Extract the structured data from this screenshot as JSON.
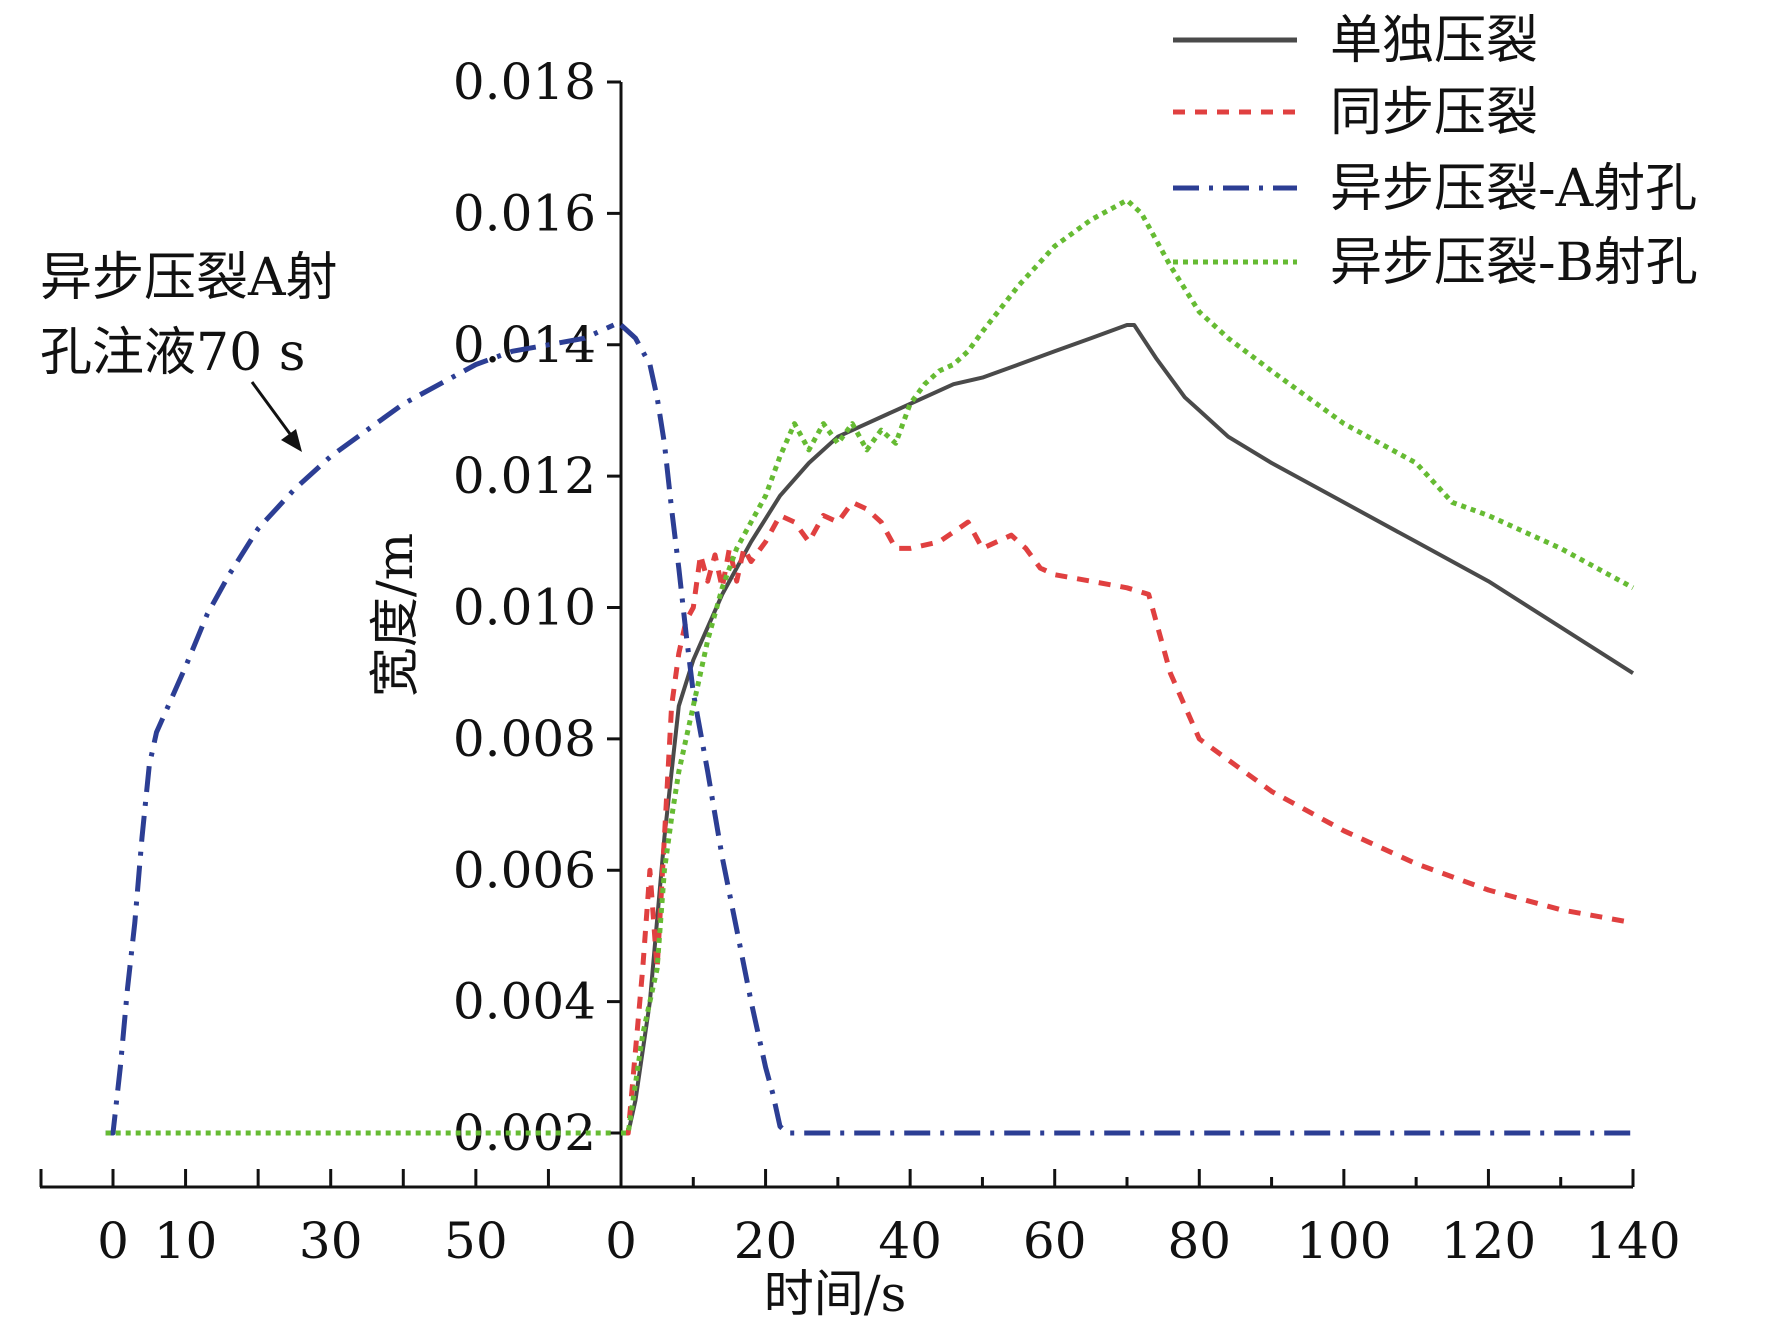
{
  "chart_data": {
    "type": "line",
    "xlabel": "时间/s",
    "ylabel": "宽度/m",
    "ylim": [
      0.0017,
      0.018
    ],
    "y_ticks": [
      "0.002",
      "0.004",
      "0.006",
      "0.008",
      "0.010",
      "0.012",
      "0.014",
      "0.016",
      "0.018"
    ],
    "pre_segment": {
      "description_label": "异步压裂A射孔注液70 s",
      "xlim": [
        -10,
        70
      ],
      "ticks": [
        0,
        10,
        30,
        50
      ],
      "tick_labels": [
        "0",
        "10",
        "30",
        "50"
      ]
    },
    "main_segment": {
      "xlim": [
        0,
        140
      ],
      "ticks": [
        0,
        20,
        40,
        60,
        80,
        100,
        120,
        140
      ],
      "tick_labels": [
        "0",
        "20",
        "40",
        "60",
        "80",
        "100",
        "120",
        "140"
      ]
    },
    "annotation": {
      "line1": "异步压裂A射",
      "line2": "孔注液70 s",
      "points_to_x": 26,
      "points_to_y": 0.0122
    },
    "legend_position": "top-right",
    "series": [
      {
        "name": "单独压裂",
        "color": "#4a4a4a",
        "style": "solid",
        "segment": "main",
        "points": [
          [
            0,
            0.002
          ],
          [
            1,
            0.002
          ],
          [
            2,
            0.0025
          ],
          [
            4,
            0.004
          ],
          [
            6,
            0.0065
          ],
          [
            8,
            0.0085
          ],
          [
            10,
            0.0092
          ],
          [
            14,
            0.0102
          ],
          [
            18,
            0.011
          ],
          [
            22,
            0.0117
          ],
          [
            26,
            0.0122
          ],
          [
            30,
            0.0126
          ],
          [
            34,
            0.0128
          ],
          [
            38,
            0.013
          ],
          [
            42,
            0.0132
          ],
          [
            46,
            0.0134
          ],
          [
            50,
            0.0135
          ],
          [
            55,
            0.0137
          ],
          [
            60,
            0.0139
          ],
          [
            65,
            0.0141
          ],
          [
            70,
            0.0143
          ],
          [
            71,
            0.0143
          ],
          [
            74,
            0.0138
          ],
          [
            78,
            0.0132
          ],
          [
            80,
            0.013
          ],
          [
            84,
            0.0126
          ],
          [
            90,
            0.0122
          ],
          [
            100,
            0.0116
          ],
          [
            110,
            0.011
          ],
          [
            120,
            0.0104
          ],
          [
            130,
            0.0097
          ],
          [
            140,
            0.009
          ]
        ]
      },
      {
        "name": "同步压裂",
        "color": "#e04040",
        "style": "dotted",
        "segment": "main",
        "points": [
          [
            0,
            0.002
          ],
          [
            1,
            0.002
          ],
          [
            3,
            0.0045
          ],
          [
            4,
            0.006
          ],
          [
            5,
            0.0045
          ],
          [
            6,
            0.0065
          ],
          [
            7,
            0.0085
          ],
          [
            8,
            0.0093
          ],
          [
            9,
            0.0098
          ],
          [
            10,
            0.01
          ],
          [
            11,
            0.0108
          ],
          [
            12,
            0.0104
          ],
          [
            13,
            0.0108
          ],
          [
            14,
            0.0103
          ],
          [
            15,
            0.0109
          ],
          [
            16,
            0.0104
          ],
          [
            17,
            0.0109
          ],
          [
            18,
            0.0107
          ],
          [
            20,
            0.011
          ],
          [
            22,
            0.0114
          ],
          [
            24,
            0.0113
          ],
          [
            26,
            0.011
          ],
          [
            28,
            0.0114
          ],
          [
            30,
            0.0113
          ],
          [
            32,
            0.0116
          ],
          [
            34,
            0.0115
          ],
          [
            36,
            0.0113
          ],
          [
            38,
            0.0109
          ],
          [
            40,
            0.0109
          ],
          [
            44,
            0.011
          ],
          [
            48,
            0.0113
          ],
          [
            50,
            0.0109
          ],
          [
            54,
            0.0111
          ],
          [
            56,
            0.0109
          ],
          [
            58,
            0.0106
          ],
          [
            60,
            0.0105
          ],
          [
            65,
            0.0104
          ],
          [
            70,
            0.0103
          ],
          [
            73,
            0.0102
          ],
          [
            74,
            0.0098
          ],
          [
            76,
            0.009
          ],
          [
            78,
            0.0085
          ],
          [
            80,
            0.008
          ],
          [
            85,
            0.0076
          ],
          [
            90,
            0.0072
          ],
          [
            100,
            0.0066
          ],
          [
            110,
            0.0061
          ],
          [
            120,
            0.0057
          ],
          [
            130,
            0.0054
          ],
          [
            140,
            0.0052
          ]
        ]
      },
      {
        "name": "异步压裂-A射孔",
        "color": "#2c3e94",
        "style": "dashdot",
        "segment": "both",
        "pre_points": [
          [
            -1,
            0.002
          ],
          [
            0,
            0.002
          ],
          [
            1,
            0.003
          ],
          [
            2,
            0.0042
          ],
          [
            3,
            0.0052
          ],
          [
            4,
            0.0065
          ],
          [
            5,
            0.0076
          ],
          [
            6,
            0.0081
          ],
          [
            8,
            0.0086
          ],
          [
            10,
            0.0091
          ],
          [
            13,
            0.0099
          ],
          [
            16,
            0.0105
          ],
          [
            20,
            0.0112
          ],
          [
            25,
            0.0118
          ],
          [
            30,
            0.0123
          ],
          [
            35,
            0.0127
          ],
          [
            40,
            0.0131
          ],
          [
            45,
            0.0134
          ],
          [
            50,
            0.0137
          ],
          [
            55,
            0.0139
          ],
          [
            60,
            0.014
          ],
          [
            65,
            0.0141
          ],
          [
            69,
            0.0143
          ]
        ],
        "points": [
          [
            0,
            0.0143
          ],
          [
            2,
            0.0141
          ],
          [
            4,
            0.0137
          ],
          [
            5,
            0.0132
          ],
          [
            6,
            0.0125
          ],
          [
            7,
            0.0115
          ],
          [
            8,
            0.0106
          ],
          [
            9,
            0.0096
          ],
          [
            10,
            0.0087
          ],
          [
            12,
            0.0075
          ],
          [
            14,
            0.0062
          ],
          [
            16,
            0.0051
          ],
          [
            18,
            0.004
          ],
          [
            20,
            0.003
          ],
          [
            21,
            0.0026
          ],
          [
            22,
            0.0021
          ],
          [
            23,
            0.002
          ],
          [
            140,
            0.002
          ]
        ]
      },
      {
        "name": "异步压裂-B射孔",
        "color": "#66bb33",
        "style": "dotted",
        "segment": "both",
        "pre_points": [
          [
            -1,
            0.002
          ],
          [
            69,
            0.002
          ]
        ],
        "points": [
          [
            0,
            0.002
          ],
          [
            1,
            0.002
          ],
          [
            3,
            0.0035
          ],
          [
            4,
            0.004
          ],
          [
            5,
            0.0045
          ],
          [
            6,
            0.006
          ],
          [
            7,
            0.0068
          ],
          [
            8,
            0.0075
          ],
          [
            10,
            0.0085
          ],
          [
            12,
            0.0095
          ],
          [
            14,
            0.0103
          ],
          [
            16,
            0.0109
          ],
          [
            18,
            0.0113
          ],
          [
            20,
            0.0117
          ],
          [
            22,
            0.0123
          ],
          [
            24,
            0.0128
          ],
          [
            26,
            0.0124
          ],
          [
            28,
            0.0128
          ],
          [
            30,
            0.0125
          ],
          [
            32,
            0.0128
          ],
          [
            34,
            0.0124
          ],
          [
            36,
            0.0127
          ],
          [
            38,
            0.0125
          ],
          [
            40,
            0.0131
          ],
          [
            42,
            0.0134
          ],
          [
            44,
            0.0136
          ],
          [
            46,
            0.0137
          ],
          [
            48,
            0.0139
          ],
          [
            50,
            0.0142
          ],
          [
            55,
            0.0149
          ],
          [
            60,
            0.0155
          ],
          [
            65,
            0.0159
          ],
          [
            70,
            0.0162
          ],
          [
            72,
            0.016
          ],
          [
            76,
            0.0152
          ],
          [
            80,
            0.0145
          ],
          [
            84,
            0.0141
          ],
          [
            90,
            0.0136
          ],
          [
            100,
            0.0128
          ],
          [
            110,
            0.0122
          ],
          [
            115,
            0.0116
          ],
          [
            120,
            0.0114
          ],
          [
            130,
            0.0109
          ],
          [
            140,
            0.0103
          ]
        ]
      }
    ]
  }
}
